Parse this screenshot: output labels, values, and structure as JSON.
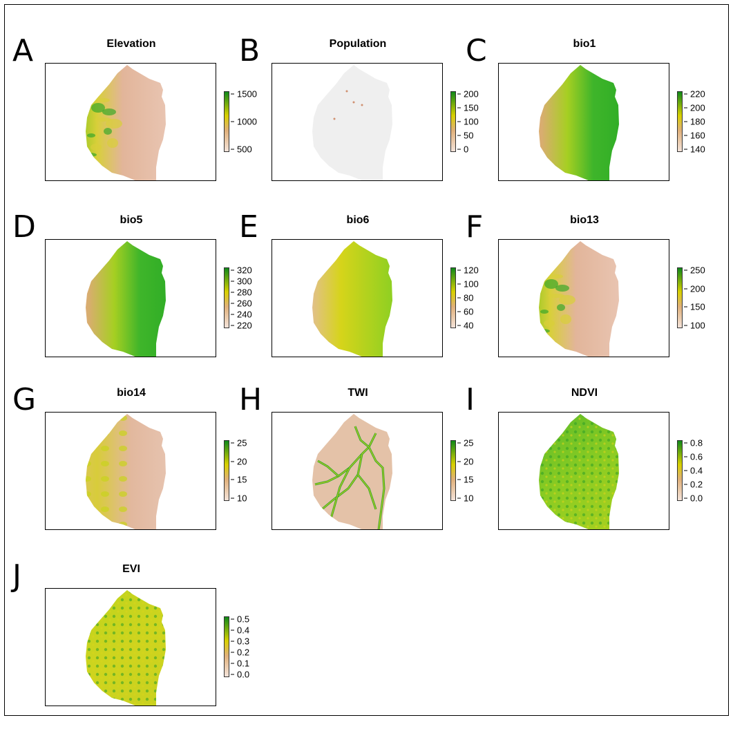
{
  "colors": {
    "scale_low": "#f0d8cc",
    "scale_mid": "#e0c800",
    "scale_high": "#1a8f1a",
    "population_fill": "#efefef"
  },
  "panels": [
    {
      "letter": "A",
      "title": "Elevation",
      "ticks": [
        "1500",
        "1000",
        "500"
      ],
      "fill": "terrain-west-green"
    },
    {
      "letter": "B",
      "title": "Population",
      "ticks": [
        "200",
        "150",
        "100",
        "50",
        "0"
      ],
      "fill": "population-grey"
    },
    {
      "letter": "C",
      "title": "bio1",
      "ticks": [
        "220",
        "200",
        "180",
        "160",
        "140"
      ],
      "fill": "east-green"
    },
    {
      "letter": "D",
      "title": "bio5",
      "ticks": [
        "320",
        "300",
        "280",
        "260",
        "240",
        "220"
      ],
      "fill": "east-green"
    },
    {
      "letter": "E",
      "title": "bio6",
      "ticks": [
        "120",
        "100",
        "80",
        "60",
        "40"
      ],
      "fill": "east-yellow-green"
    },
    {
      "letter": "F",
      "title": "bio13",
      "ticks": [
        "250",
        "200",
        "150",
        "100"
      ],
      "fill": "terrain-west-green"
    },
    {
      "letter": "G",
      "title": "bio14",
      "ticks": [
        "25",
        "20",
        "15",
        "10"
      ],
      "fill": "patchy-yellow"
    },
    {
      "letter": "H",
      "title": "TWI",
      "ticks": [
        "25",
        "20",
        "15",
        "10"
      ],
      "fill": "river-network"
    },
    {
      "letter": "I",
      "title": "NDVI",
      "ticks": [
        "0.8",
        "0.6",
        "0.4",
        "0.2",
        "0.0"
      ],
      "fill": "vegetation-mix"
    },
    {
      "letter": "J",
      "title": "EVI",
      "ticks": [
        "0.5",
        "0.4",
        "0.3",
        "0.2",
        "0.1",
        "0.0"
      ],
      "fill": "vegetation-yellow"
    }
  ]
}
